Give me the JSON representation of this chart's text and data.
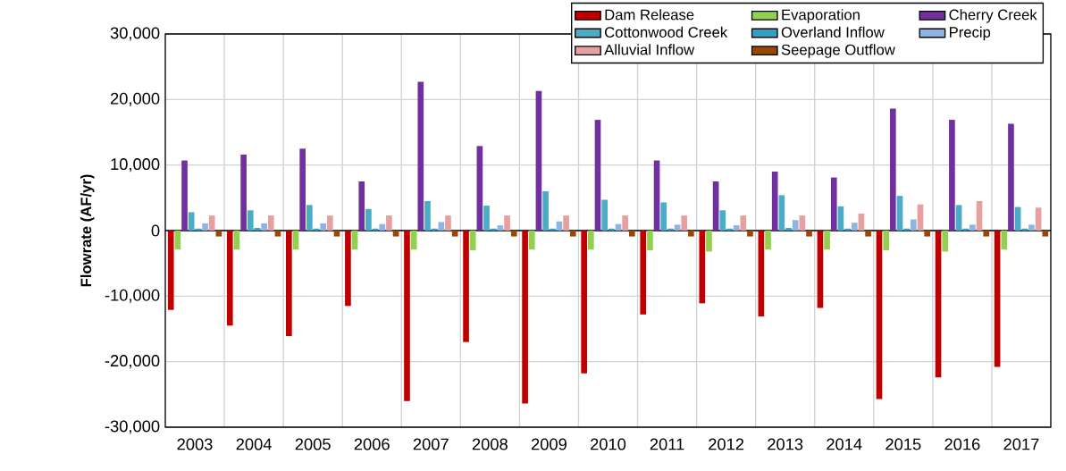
{
  "chart_data": {
    "type": "bar",
    "ylabel": "Flowrate (AF/yr)",
    "categories": [
      "2003",
      "2004",
      "2005",
      "2006",
      "2007",
      "2008",
      "2009",
      "2010",
      "2011",
      "2012",
      "2013",
      "2014",
      "2015",
      "2016",
      "2017"
    ],
    "series": [
      {
        "name": "Dam Release",
        "color": "#c00000",
        "values": [
          -12100,
          -14500,
          -16100,
          -11500,
          -26000,
          -17000,
          -26400,
          -21800,
          -12800,
          -11100,
          -13100,
          -11800,
          -25700,
          -22400,
          -20800
        ]
      },
      {
        "name": "Evaporation",
        "color": "#92d050",
        "values": [
          -2900,
          -2900,
          -2900,
          -2900,
          -2900,
          -3000,
          -2900,
          -2900,
          -3000,
          -3200,
          -2900,
          -2900,
          -3000,
          -3200,
          -2900
        ]
      },
      {
        "name": "Cherry Creek",
        "color": "#7030a0",
        "values": [
          10700,
          11600,
          12500,
          7500,
          22700,
          12900,
          21300,
          16900,
          10700,
          7500,
          9000,
          8100,
          18600,
          16900,
          16300
        ]
      },
      {
        "name": "Cottonwood Creek",
        "color": "#4bacc6",
        "values": [
          2800,
          3100,
          3900,
          3300,
          4500,
          3800,
          6000,
          4700,
          4300,
          3100,
          5400,
          3700,
          5300,
          3900,
          3600
        ]
      },
      {
        "name": "Overland Inflow",
        "color": "#31a0c8",
        "values": [
          300,
          400,
          300,
          300,
          300,
          300,
          300,
          300,
          300,
          300,
          400,
          300,
          300,
          300,
          300
        ]
      },
      {
        "name": "Precip",
        "color": "#8db4e2",
        "values": [
          1100,
          1100,
          1100,
          1000,
          1300,
          800,
          1400,
          1000,
          900,
          800,
          1600,
          1200,
          1700,
          900,
          900
        ]
      },
      {
        "name": "Alluvial Inflow",
        "color": "#e6a0a0",
        "values": [
          2300,
          2300,
          2300,
          2300,
          2300,
          2300,
          2300,
          2300,
          2300,
          2300,
          2300,
          2600,
          4000,
          4500,
          3500
        ]
      },
      {
        "name": "Seepage Outflow",
        "color": "#974706",
        "values": [
          -900,
          -900,
          -900,
          -900,
          -900,
          -900,
          -900,
          -900,
          -900,
          -900,
          -900,
          -900,
          -900,
          -900,
          -900
        ]
      }
    ],
    "ylim": [
      -30000,
      30000
    ],
    "yticks": [
      {
        "value": -30000,
        "label": "-30,000"
      },
      {
        "value": -20000,
        "label": "-20,000"
      },
      {
        "value": -10000,
        "label": "-10,000"
      },
      0,
      {
        "value": 10000,
        "label": "10,000"
      },
      {
        "value": 20000,
        "label": "20,000"
      },
      {
        "value": 30000,
        "label": "30,000"
      }
    ],
    "grid": true,
    "legend": "top right"
  }
}
